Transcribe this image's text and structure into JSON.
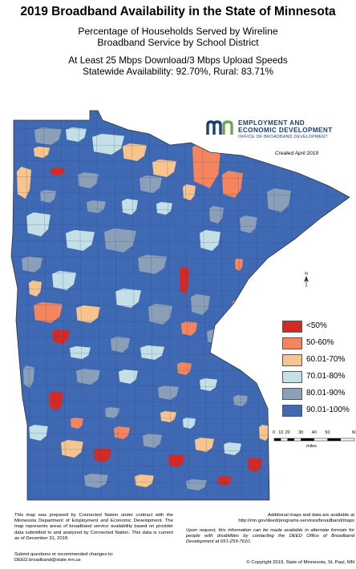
{
  "title": "2019 Broadband Availability in the State of Minnesota",
  "subtitle": {
    "line1": "Percentage of Households Served by Wireline",
    "line2": "Broadband Service by School District",
    "line3": "At Least 25 Mbps Download/3 Mbps Upload Speeds",
    "line4": "Statewide Availability: 92.70%, Rural: 83.71%"
  },
  "logo": {
    "mark": "mn",
    "line1": "EMPLOYMENT AND",
    "line2": "ECONOMIC DEVELOPMENT",
    "line3": "OFFICE OF BROADBAND DEVELOPMENT"
  },
  "created": "Created April 2019",
  "legend": [
    {
      "label": "<50%",
      "color": "#d42a27"
    },
    {
      "label": "50-60%",
      "color": "#f4855e"
    },
    {
      "label": "60.01-70%",
      "color": "#f8c48d"
    },
    {
      "label": "70.01-80%",
      "color": "#c4dfe6"
    },
    {
      "label": "80.01-90%",
      "color": "#8b9fb8"
    },
    {
      "label": "90.01-100%",
      "color": "#3f6ab3"
    }
  ],
  "scale": {
    "ticks": [
      "0",
      "10",
      "20",
      "30",
      "40",
      "50",
      "60"
    ],
    "unit": "miles"
  },
  "compass": {
    "label": "N"
  },
  "notes": {
    "left": "This map was prepared by Connected Nation under contract with the Minnesota Department of Employment and Economic Development. The map represents areas of broadband service availability based on provider data submitted to and analyzed by Connected Nation. This data is current as of December 31, 2018.",
    "submit_line1": "Submit questions or recommended changes to:",
    "submit_line2": "DEED.broadband@state.mn.us",
    "right1_line1": "Additional maps and data are available at",
    "right1_line2": "http://mn.gov/deed/programs-services/broadband/maps",
    "right2": "Upon request, this information can be made available in alternate formats for people with disabilities by contacting the DEED Office of Broadband Development at 651-259-7610.",
    "copyright": "© Copyright 2019, State of Minnesota, St. Paul, MN"
  }
}
